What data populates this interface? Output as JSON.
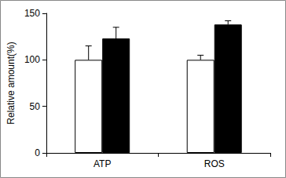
{
  "chart_data": {
    "type": "bar",
    "y_label": "Relative amount(%)",
    "categories": [
      "ATP",
      "ROS"
    ],
    "series": [
      {
        "color": "#ffffff",
        "values": [
          100,
          100
        ],
        "errors": [
          15,
          5
        ]
      },
      {
        "color": "#000000",
        "values": [
          123,
          138
        ],
        "errors": [
          12,
          4
        ]
      }
    ],
    "ylim": [
      0,
      150
    ],
    "yticks": [
      0,
      50,
      100,
      150
    ],
    "grid": false
  }
}
